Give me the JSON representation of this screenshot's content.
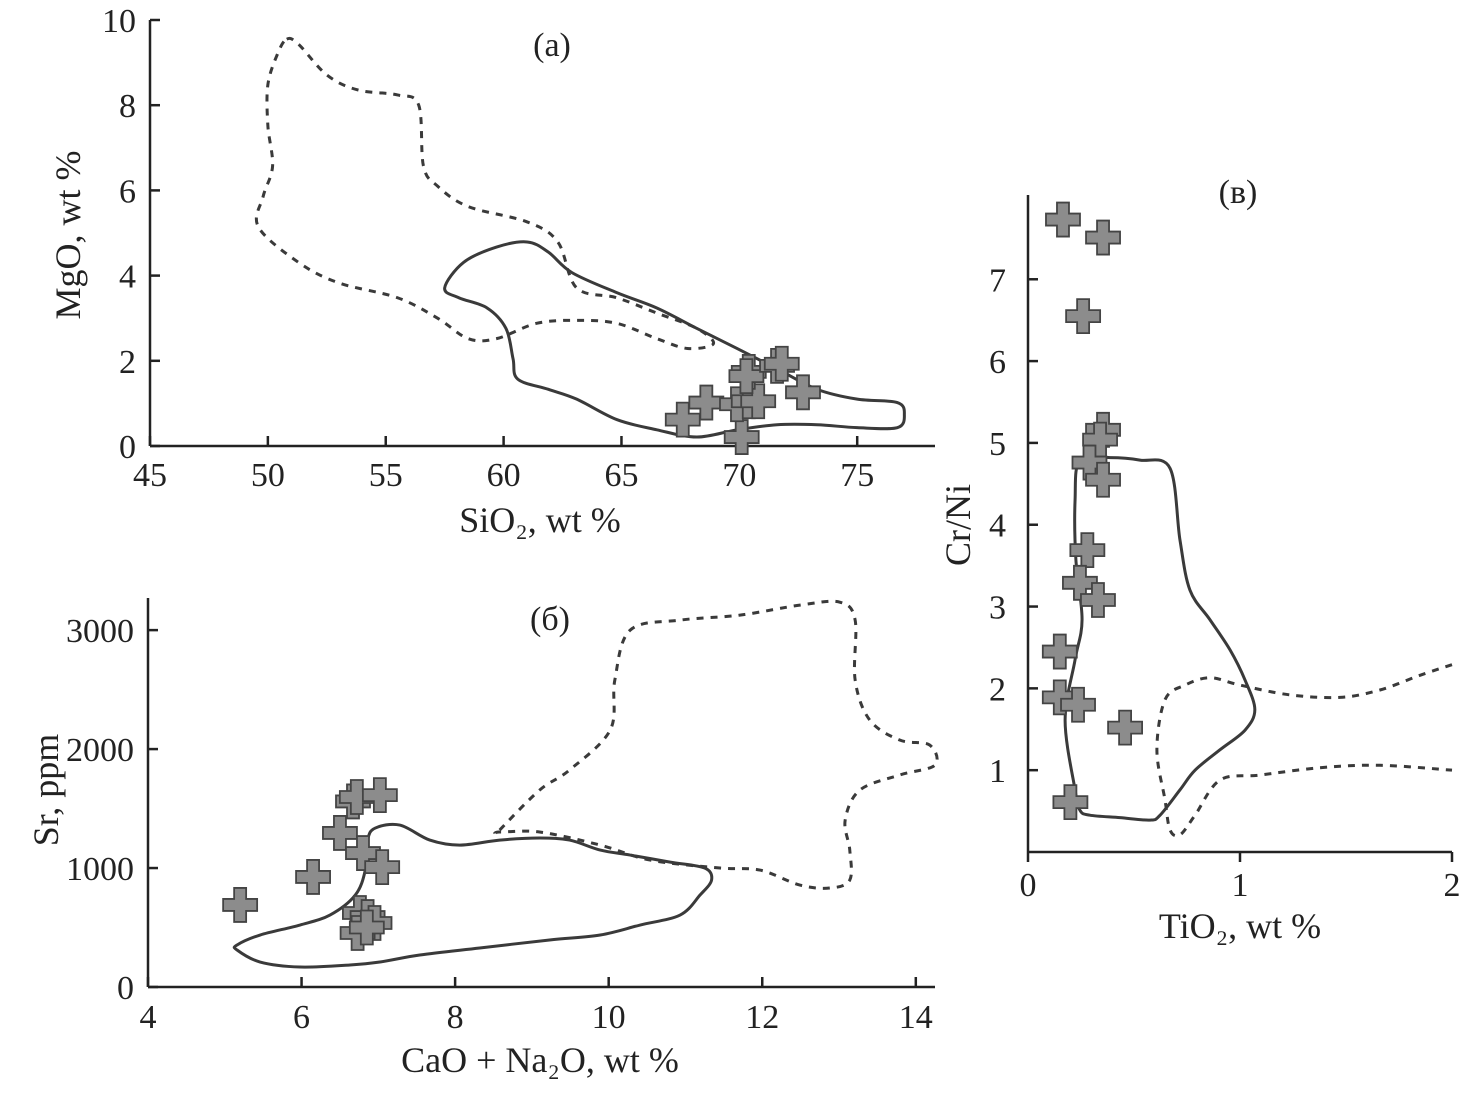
{
  "chart_data": [
    {
      "type": "scatter",
      "panel_label": "(a)",
      "xlabel": "SiO₂, wt %",
      "ylabel": "MgO, wt %",
      "xlim": [
        45,
        78.3
      ],
      "ylim": [
        0,
        10
      ],
      "xticks": [
        45,
        50,
        55,
        60,
        65,
        70,
        75
      ],
      "yticks": [
        0,
        2,
        4,
        6,
        8,
        10
      ],
      "grid": false,
      "points": [
        [
          67.6,
          0.62
        ],
        [
          68.6,
          1.02
        ],
        [
          70.1,
          0.21
        ],
        [
          69.9,
          0.98
        ],
        [
          70.4,
          1.05
        ],
        [
          70.8,
          1.05
        ],
        [
          70.4,
          1.74
        ],
        [
          70.3,
          1.64
        ],
        [
          71.6,
          1.88
        ],
        [
          71.8,
          1.93
        ],
        [
          72.7,
          1.26
        ]
      ],
      "contours": [
        {
          "style": "solid",
          "closed": true,
          "points": [
            [
              57.5,
              3.71
            ],
            [
              58.3,
              4.31
            ],
            [
              59.7,
              4.67
            ],
            [
              61.0,
              4.79
            ],
            [
              61.9,
              4.55
            ],
            [
              62.9,
              4.07
            ],
            [
              64.8,
              3.6
            ],
            [
              66.5,
              3.24
            ],
            [
              68.2,
              2.76
            ],
            [
              69.9,
              2.29
            ],
            [
              71.6,
              1.81
            ],
            [
              73.3,
              1.33
            ],
            [
              75.0,
              1.1
            ],
            [
              76.7,
              1.02
            ],
            [
              77.0,
              0.74
            ],
            [
              76.7,
              0.43
            ],
            [
              75.0,
              0.43
            ],
            [
              73.3,
              0.5
            ],
            [
              71.6,
              0.5
            ],
            [
              69.9,
              0.38
            ],
            [
              68.2,
              0.21
            ],
            [
              66.5,
              0.38
            ],
            [
              64.8,
              0.62
            ],
            [
              63.1,
              1.1
            ],
            [
              61.9,
              1.33
            ],
            [
              60.6,
              1.57
            ],
            [
              60.4,
              2.05
            ],
            [
              60.1,
              2.76
            ],
            [
              59.3,
              3.24
            ],
            [
              58.1,
              3.48
            ]
          ]
        },
        {
          "style": "dashed",
          "closed": true,
          "points": [
            [
              50.8,
              9.55
            ],
            [
              51.3,
              9.43
            ],
            [
              52.5,
              8.71
            ],
            [
              53.8,
              8.36
            ],
            [
              55.5,
              8.24
            ],
            [
              56.4,
              8.0
            ],
            [
              56.6,
              6.57
            ],
            [
              57.2,
              6.1
            ],
            [
              58.5,
              5.62
            ],
            [
              61.0,
              5.26
            ],
            [
              62.3,
              4.79
            ],
            [
              63.1,
              3.71
            ],
            [
              64.8,
              3.48
            ],
            [
              66.5,
              3.12
            ],
            [
              68.2,
              2.76
            ],
            [
              68.9,
              2.4
            ],
            [
              67.8,
              2.29
            ],
            [
              66.5,
              2.52
            ],
            [
              64.8,
              2.88
            ],
            [
              63.1,
              2.95
            ],
            [
              61.4,
              2.88
            ],
            [
              59.7,
              2.52
            ],
            [
              58.5,
              2.52
            ],
            [
              57.2,
              3.0
            ],
            [
              55.5,
              3.48
            ],
            [
              53.0,
              3.83
            ],
            [
              51.3,
              4.31
            ],
            [
              49.6,
              5.14
            ],
            [
              49.8,
              5.86
            ],
            [
              50.2,
              6.57
            ],
            [
              50.0,
              7.52
            ],
            [
              50.0,
              8.48
            ],
            [
              50.4,
              9.19
            ]
          ]
        }
      ]
    },
    {
      "type": "scatter",
      "panel_label": "(б)",
      "xlabel": "CaO + Na₂O, wt %",
      "ylabel": "Sr, ppm",
      "xlim": [
        4,
        14.25
      ],
      "ylim": [
        0,
        3270
      ],
      "xticks": [
        4,
        6,
        8,
        10,
        12,
        14
      ],
      "yticks": [
        0,
        1000,
        2000,
        3000
      ],
      "grid": false,
      "points": [
        [
          5.2,
          690
        ],
        [
          6.15,
          925
        ],
        [
          6.5,
          1295
        ],
        [
          6.67,
          1560
        ],
        [
          6.72,
          1597
        ],
        [
          7.02,
          1613
        ],
        [
          6.8,
          1126
        ],
        [
          7.05,
          1008
        ],
        [
          6.76,
          622
        ],
        [
          6.86,
          588
        ],
        [
          6.95,
          538
        ],
        [
          6.73,
          454
        ],
        [
          6.85,
          500
        ]
      ],
      "contours": [
        {
          "style": "solid",
          "closed": true,
          "points": [
            [
              5.16,
              353
            ],
            [
              5.46,
              437
            ],
            [
              5.98,
              521
            ],
            [
              6.37,
              605
            ],
            [
              6.7,
              773
            ],
            [
              6.83,
              983
            ],
            [
              6.86,
              1235
            ],
            [
              6.96,
              1336
            ],
            [
              7.28,
              1361
            ],
            [
              7.67,
              1235
            ],
            [
              8.06,
              1193
            ],
            [
              8.58,
              1235
            ],
            [
              9.1,
              1252
            ],
            [
              9.49,
              1235
            ],
            [
              9.89,
              1151
            ],
            [
              10.28,
              1109
            ],
            [
              10.8,
              1050
            ],
            [
              11.25,
              1000
            ],
            [
              11.34,
              899
            ],
            [
              11.19,
              773
            ],
            [
              10.93,
              605
            ],
            [
              10.41,
              521
            ],
            [
              9.89,
              437
            ],
            [
              9.23,
              395
            ],
            [
              8.32,
              328
            ],
            [
              7.54,
              269
            ],
            [
              7.02,
              210
            ],
            [
              6.63,
              185
            ],
            [
              5.98,
              168
            ],
            [
              5.46,
              210
            ],
            [
              5.16,
              311
            ]
          ]
        },
        {
          "style": "dashed",
          "closed": true,
          "points": [
            [
              8.58,
              1319
            ],
            [
              9.1,
              1655
            ],
            [
              9.49,
              1824
            ],
            [
              10.02,
              2160
            ],
            [
              10.08,
              2580
            ],
            [
              10.28,
              3000
            ],
            [
              10.93,
              3084
            ],
            [
              11.71,
              3126
            ],
            [
              12.49,
              3210
            ],
            [
              13.01,
              3235
            ],
            [
              13.21,
              3084
            ],
            [
              13.21,
              2580
            ],
            [
              13.4,
              2244
            ],
            [
              13.79,
              2076
            ],
            [
              14.18,
              2034
            ],
            [
              14.25,
              1866
            ],
            [
              13.79,
              1782
            ],
            [
              13.27,
              1655
            ],
            [
              13.08,
              1403
            ],
            [
              13.14,
              1151
            ],
            [
              13.14,
              899
            ],
            [
              12.88,
              832
            ],
            [
              12.49,
              857
            ],
            [
              11.97,
              983
            ],
            [
              11.45,
              1000
            ],
            [
              10.54,
              1067
            ],
            [
              9.89,
              1193
            ],
            [
              9.1,
              1303
            ],
            [
              8.58,
              1303
            ]
          ]
        }
      ]
    },
    {
      "type": "scatter",
      "panel_label": "(в)",
      "xlabel": "TiO₂, wt %",
      "ylabel": "Cr/Ni",
      "xlim": [
        0,
        2
      ],
      "ylim": [
        0,
        8.03
      ],
      "xticks": [
        0,
        1,
        2
      ],
      "yticks": [
        1,
        2,
        3,
        4,
        5,
        6,
        7
      ],
      "xtick_labels_shown": [
        "0",
        "1",
        "2"
      ],
      "grid": false,
      "points": [
        [
          0.165,
          7.73
        ],
        [
          0.354,
          7.51
        ],
        [
          0.26,
          6.55
        ],
        [
          0.354,
          5.16
        ],
        [
          0.34,
          5.04
        ],
        [
          0.29,
          4.76
        ],
        [
          0.354,
          4.55
        ],
        [
          0.28,
          3.69
        ],
        [
          0.245,
          3.29
        ],
        [
          0.33,
          3.08
        ],
        [
          0.15,
          2.45
        ],
        [
          0.15,
          1.89
        ],
        [
          0.236,
          1.8
        ],
        [
          0.458,
          1.52
        ],
        [
          0.2,
          0.61
        ]
      ],
      "contours": [
        {
          "style": "solid",
          "closed": true,
          "points": [
            [
              0.245,
              4.79
            ],
            [
              0.387,
              4.82
            ],
            [
              0.528,
              4.79
            ],
            [
              0.67,
              4.69
            ],
            [
              0.717,
              3.81
            ],
            [
              0.764,
              3.2
            ],
            [
              0.858,
              2.84
            ],
            [
              0.953,
              2.47
            ],
            [
              1.024,
              2.1
            ],
            [
              1.07,
              1.74
            ],
            [
              1.024,
              1.49
            ],
            [
              0.906,
              1.25
            ],
            [
              0.788,
              1.0
            ],
            [
              0.717,
              0.76
            ],
            [
              0.623,
              0.45
            ],
            [
              0.575,
              0.39
            ],
            [
              0.434,
              0.42
            ],
            [
              0.292,
              0.45
            ],
            [
              0.245,
              0.51
            ],
            [
              0.222,
              0.76
            ],
            [
              0.175,
              1.61
            ],
            [
              0.222,
              2.35
            ],
            [
              0.255,
              2.84
            ],
            [
              0.226,
              3.57
            ],
            [
              0.222,
              4.3
            ]
          ]
        },
        {
          "style": "dashed",
          "closed": false,
          "points": [
            [
              2.0,
              2.29
            ],
            [
              1.849,
              2.16
            ],
            [
              1.66,
              1.98
            ],
            [
              1.472,
              1.89
            ],
            [
              1.236,
              1.92
            ],
            [
              1.0,
              2.04
            ],
            [
              0.858,
              2.13
            ],
            [
              0.741,
              2.04
            ],
            [
              0.646,
              1.86
            ],
            [
              0.608,
              1.25
            ],
            [
              0.646,
              0.64
            ],
            [
              0.67,
              0.27
            ],
            [
              0.717,
              0.21
            ],
            [
              0.788,
              0.45
            ],
            [
              0.906,
              0.88
            ],
            [
              1.094,
              0.94
            ],
            [
              1.377,
              1.03
            ],
            [
              1.66,
              1.06
            ],
            [
              2.0,
              1.0
            ]
          ]
        }
      ]
    }
  ],
  "colors": {
    "marker_fill": "#8c8c8c",
    "marker_edge": "#444444",
    "contour": "#3a3a3a"
  }
}
